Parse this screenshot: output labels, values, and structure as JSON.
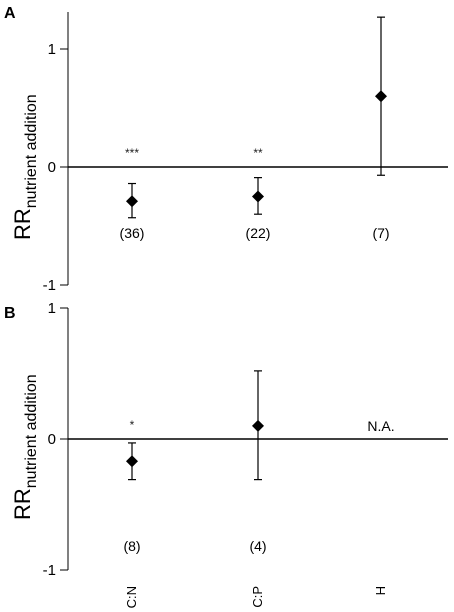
{
  "chart_data": [
    {
      "panel": "A",
      "type": "scatter",
      "ylabel": "RR",
      "ylabel_sub": "nutrient addition",
      "ylim": [
        -1,
        1.3
      ],
      "yticks": [
        "1",
        "0",
        "-1"
      ],
      "yticks_values": [
        1,
        0,
        -1
      ],
      "categories": [
        "C:N",
        "C:P",
        "H"
      ],
      "values": [
        -0.29,
        -0.25,
        0.6
      ],
      "error_low": [
        -0.43,
        -0.4,
        -0.07
      ],
      "error_high": [
        -0.14,
        -0.09,
        1.27
      ],
      "significance": [
        "***",
        "**",
        ""
      ],
      "n_labels": [
        "(36)",
        "(22)",
        "(7)"
      ],
      "zero_line": true
    },
    {
      "panel": "B",
      "type": "scatter",
      "ylabel": "RR",
      "ylabel_sub": "nutrient addition",
      "ylim": [
        -1,
        1
      ],
      "yticks": [
        "1",
        "0",
        "-1"
      ],
      "yticks_values": [
        1,
        0,
        -1
      ],
      "categories": [
        "C:N",
        "C:P",
        "H"
      ],
      "values": [
        -0.17,
        0.1,
        null
      ],
      "error_low": [
        -0.31,
        -0.31,
        null
      ],
      "error_high": [
        -0.03,
        0.52,
        null
      ],
      "significance": [
        "*",
        "",
        ""
      ],
      "n_labels": [
        "(8)",
        "(4)",
        ""
      ],
      "missing_label": [
        "",
        "",
        "N.A."
      ],
      "zero_line": true
    }
  ],
  "x_tick_labels": [
    "C:N",
    "C:P",
    "H"
  ]
}
